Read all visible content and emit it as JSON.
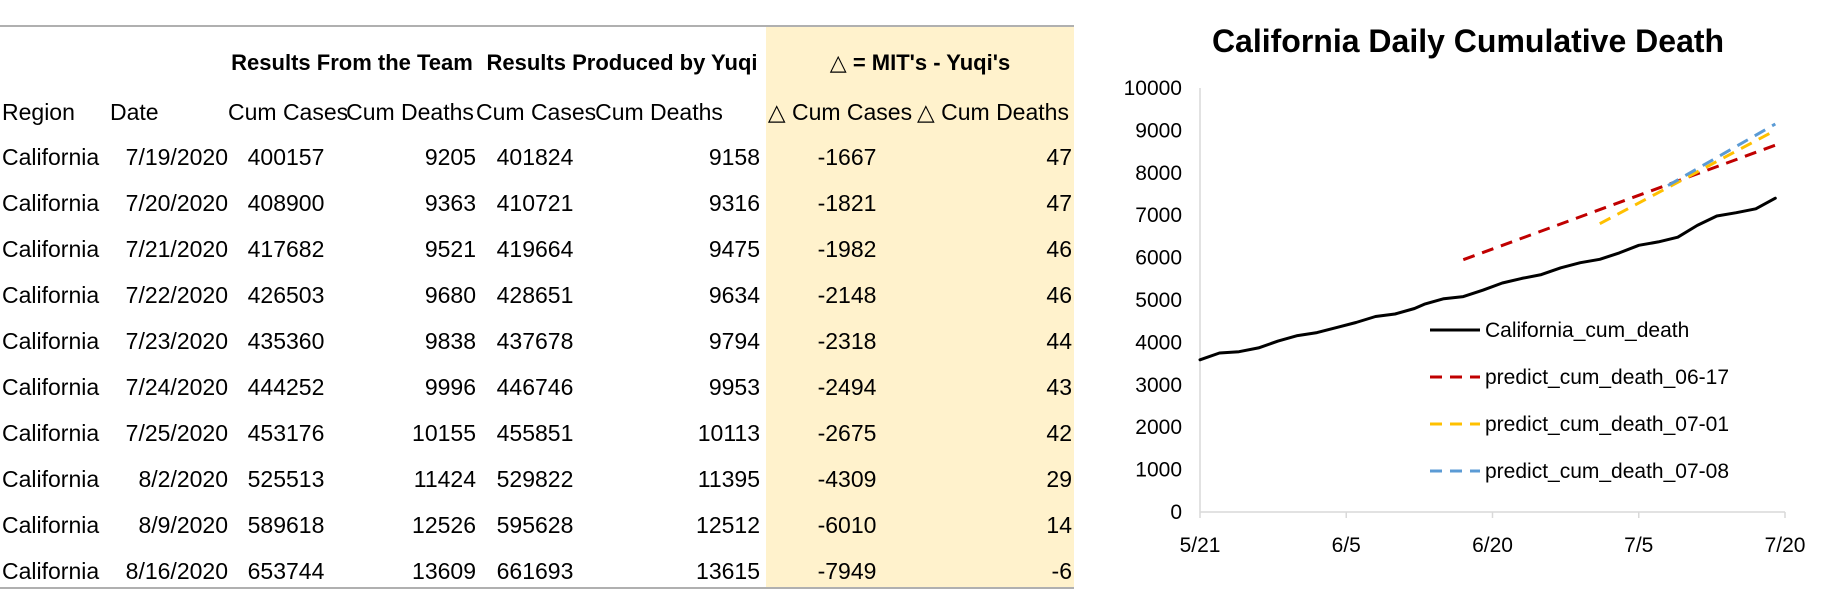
{
  "table": {
    "group_headers": {
      "team": "Results From the Team",
      "yuqi": "Results Produced by Yuqi",
      "delta": "△ = MIT's - Yuqi's"
    },
    "columns": [
      "Region",
      "Date",
      "Cum Cases",
      "Cum Deaths",
      "Cum Cases",
      "Cum Deaths",
      "△ Cum Cases",
      "△ Cum Deaths"
    ],
    "rows": [
      [
        "California",
        "7/19/2020",
        "400157",
        "9205",
        "401824",
        "9158",
        "-1667",
        "47"
      ],
      [
        "California",
        "7/20/2020",
        "408900",
        "9363",
        "410721",
        "9316",
        "-1821",
        "47"
      ],
      [
        "California",
        "7/21/2020",
        "417682",
        "9521",
        "419664",
        "9475",
        "-1982",
        "46"
      ],
      [
        "California",
        "7/22/2020",
        "426503",
        "9680",
        "428651",
        "9634",
        "-2148",
        "46"
      ],
      [
        "California",
        "7/23/2020",
        "435360",
        "9838",
        "437678",
        "9794",
        "-2318",
        "44"
      ],
      [
        "California",
        "7/24/2020",
        "444252",
        "9996",
        "446746",
        "9953",
        "-2494",
        "43"
      ],
      [
        "California",
        "7/25/2020",
        "453176",
        "10155",
        "455851",
        "10113",
        "-2675",
        "42"
      ],
      [
        "California",
        "8/2/2020",
        "525513",
        "11424",
        "529822",
        "11395",
        "-4309",
        "29"
      ],
      [
        "California",
        "8/9/2020",
        "589618",
        "12526",
        "595628",
        "12512",
        "-6010",
        "14"
      ],
      [
        "California",
        "8/16/2020",
        "653744",
        "13609",
        "661693",
        "13615",
        "-7949",
        "-6"
      ]
    ],
    "delta_highlight_color": "#fff2cc"
  },
  "chart_data": {
    "type": "line",
    "title": "California Daily Cumulative Death",
    "xlabel": "",
    "ylabel": "",
    "x_ticks": [
      "5/21",
      "6/5",
      "6/20",
      "7/5",
      "7/20"
    ],
    "xlim": [
      "5/21",
      "7/20"
    ],
    "ylim": [
      0,
      10000
    ],
    "y_ticks": [
      0,
      1000,
      2000,
      3000,
      4000,
      5000,
      6000,
      7000,
      8000,
      9000,
      10000
    ],
    "grid": false,
    "legend_position": "bottom-right",
    "series": [
      {
        "name": "California_cum_death",
        "color": "#000000",
        "dash": "solid",
        "points": [
          [
            "5/21",
            3590
          ],
          [
            "5/23",
            3750
          ],
          [
            "5/25",
            3780
          ],
          [
            "5/27",
            3870
          ],
          [
            "5/29",
            4030
          ],
          [
            "5/31",
            4160
          ],
          [
            "6/2",
            4230
          ],
          [
            "6/4",
            4350
          ],
          [
            "6/6",
            4470
          ],
          [
            "6/8",
            4610
          ],
          [
            "6/10",
            4670
          ],
          [
            "6/12",
            4800
          ],
          [
            "6/13",
            4900
          ],
          [
            "6/15",
            5030
          ],
          [
            "6/17",
            5080
          ],
          [
            "6/19",
            5230
          ],
          [
            "6/21",
            5400
          ],
          [
            "6/23",
            5510
          ],
          [
            "6/25",
            5600
          ],
          [
            "6/27",
            5760
          ],
          [
            "6/29",
            5880
          ],
          [
            "7/1",
            5960
          ],
          [
            "7/3",
            6110
          ],
          [
            "7/5",
            6290
          ],
          [
            "7/7",
            6370
          ],
          [
            "7/9",
            6480
          ],
          [
            "7/11",
            6760
          ],
          [
            "7/13",
            6980
          ],
          [
            "7/15",
            7060
          ],
          [
            "7/17",
            7150
          ],
          [
            "7/19",
            7400
          ]
        ]
      },
      {
        "name": "predict_cum_death_06-17",
        "color": "#c00000",
        "dash": "dashed",
        "points": [
          [
            "6/17",
            5950
          ],
          [
            "7/19",
            8650
          ]
        ]
      },
      {
        "name": "predict_cum_death_07-01",
        "color": "#ffc000",
        "dash": "dashed",
        "points": [
          [
            "7/1",
            6800
          ],
          [
            "7/19",
            9000
          ]
        ]
      },
      {
        "name": "predict_cum_death_07-08",
        "color": "#5b9bd5",
        "dash": "dashed",
        "points": [
          [
            "7/8",
            7700
          ],
          [
            "7/19",
            9150
          ]
        ]
      }
    ]
  }
}
